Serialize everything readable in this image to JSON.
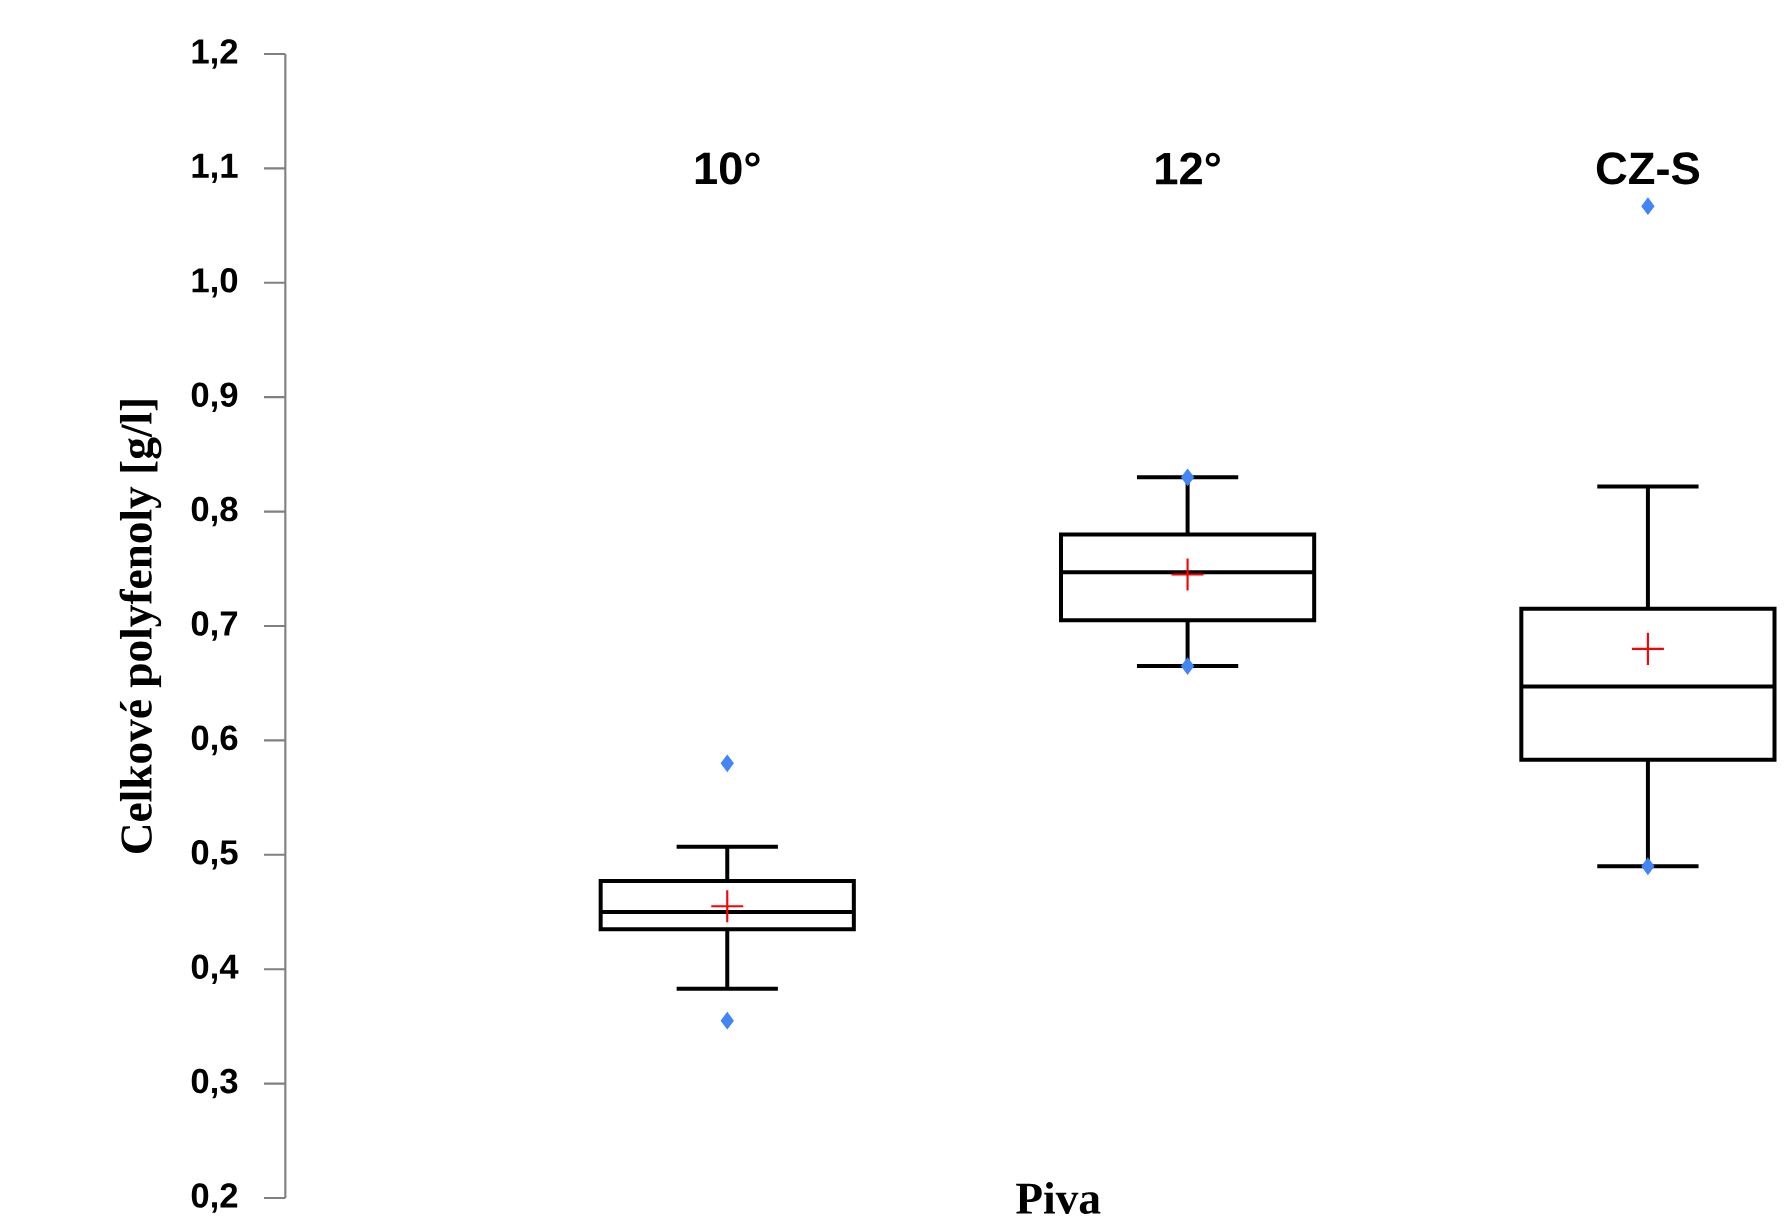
{
  "chart_data": {
    "type": "box",
    "xlabel": "Piva",
    "ylabel": "Celkové polyfenoly [g/l]",
    "categories": [
      "10°",
      "12°",
      "CZ-S"
    ],
    "boxes": [
      {
        "low": 0.383,
        "q1": 0.435,
        "median": 0.45,
        "q3": 0.477,
        "high": 0.507,
        "mean": 0.455,
        "outliers": [
          0.58,
          0.355
        ]
      },
      {
        "low": 0.665,
        "q1": 0.705,
        "median": 0.747,
        "q3": 0.78,
        "high": 0.83,
        "mean": 0.745,
        "outliers": [
          0.83,
          0.665
        ]
      },
      {
        "low": 0.49,
        "q1": 0.583,
        "median": 0.647,
        "q3": 0.715,
        "high": 0.822,
        "mean": 0.68,
        "outliers": [
          1.067,
          0.49
        ]
      }
    ],
    "ylim": [
      0.2,
      1.2
    ],
    "yticks": [
      {
        "value": 0.2,
        "label": "0,2"
      },
      {
        "value": 0.3,
        "label": "0,3"
      },
      {
        "value": 0.4,
        "label": "0,4"
      },
      {
        "value": 0.5,
        "label": "0,5"
      },
      {
        "value": 0.6,
        "label": "0,6"
      },
      {
        "value": 0.7,
        "label": "0,7"
      },
      {
        "value": 0.8,
        "label": "0,8"
      },
      {
        "value": 0.9,
        "label": "0,9"
      },
      {
        "value": 1.0,
        "label": "1,0"
      },
      {
        "value": 1.1,
        "label": "1,1"
      },
      {
        "value": 1.2,
        "label": "1,2"
      }
    ]
  }
}
